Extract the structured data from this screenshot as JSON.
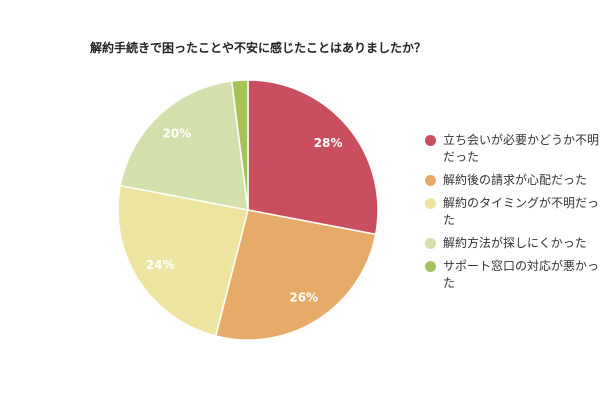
{
  "chart_data": {
    "type": "pie",
    "title": "解約手続きで困ったことや不安に感じたことはありましたか？",
    "categories": [
      "立ち会いが必要かどうか不明だった",
      "解約後の請求が心配だった",
      "解約のタイミングが不明だった",
      "解約方法が探しにくかった",
      "サポート窓口の対応が悪かった"
    ],
    "values": [
      28,
      26,
      24,
      20,
      2
    ],
    "value_labels": [
      "28%",
      "26%",
      "24%",
      "20%",
      null
    ],
    "colors": [
      "#c94f5e",
      "#e6ab68",
      "#ede59f",
      "#d3e0ab",
      "#a6c35a"
    ],
    "legend": "right"
  }
}
